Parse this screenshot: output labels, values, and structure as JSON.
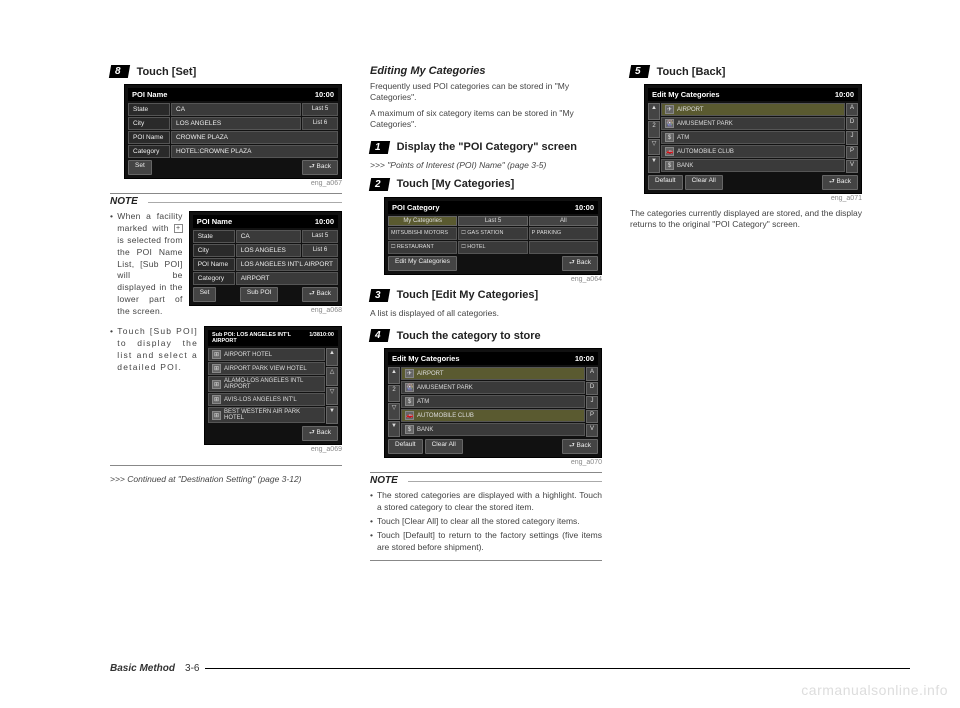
{
  "col1": {
    "step8": {
      "num": "8",
      "title": "Touch [Set]"
    },
    "ss1": {
      "title": "POI Name",
      "time": "10:00",
      "rows": [
        {
          "label": "State",
          "value": "CA",
          "side": "Last 5"
        },
        {
          "label": "City",
          "value": "LOS ANGELES",
          "side": "List 6"
        },
        {
          "label": "POI Name",
          "value": "CROWNE PLAZA",
          "side": ""
        },
        {
          "label": "Category",
          "value": "HOTEL:CROWNE PLAZA",
          "side": ""
        }
      ],
      "footer_left": "Set",
      "footer_right": "⮐ Back",
      "caption": "eng_a067"
    },
    "note_label": "NOTE",
    "note1": "When a facility marked with ⊞ is selected from the POI Name List, [Sub POI] will be displayed in the lower part of the screen.",
    "ss2": {
      "title": "POI Name",
      "time": "10:00",
      "rows": [
        {
          "label": "State",
          "value": "CA",
          "side": "Last 5"
        },
        {
          "label": "City",
          "value": "LOS ANGELES",
          "side": "List 6"
        },
        {
          "label": "POI Name",
          "value": "LOS ANGELES INT'L AIRPORT",
          "side": ""
        },
        {
          "label": "Category",
          "value": "AIRPORT",
          "side": ""
        }
      ],
      "footer_left": "Set",
      "footer_mid": "Sub POI",
      "footer_right": "⮐ Back",
      "caption": "eng_a068"
    },
    "note2": "Touch [Sub POI] to display the list and select a detailed POI.",
    "ss3": {
      "title": "Sub POI: LOS ANGELES INT'L AIRPORT",
      "count": "1/38",
      "time": "10:00",
      "items": [
        "AIRPORT HOTEL",
        "AIRPORT PARK VIEW HOTEL",
        "ALAMO-LOS ANGELES INTL AIRPORT",
        "AVIS-LOS ANGELES INT'L",
        "BEST WESTERN AIR PARK HOTEL"
      ],
      "footer_right": "⮐ Back",
      "caption": "eng_a069"
    },
    "continued": ">>> Continued at \"Destination Setting\" (page 3-12)"
  },
  "col2": {
    "heading": "Editing My Categories",
    "intro1": "Frequently used POI categories can be stored in \"My Categories\".",
    "intro2": "A maximum of six category items can be stored in \"My Categories\".",
    "step1": {
      "num": "1",
      "title": "Display the \"POI Category\" screen"
    },
    "ref1": ">>> \"Points of Interest (POI) Name\" (page 3-5)",
    "step2": {
      "num": "2",
      "title": "Touch [My Categories]"
    },
    "ss4": {
      "title": "POI Category",
      "time": "10:00",
      "tabs": [
        "My Categories",
        "Last 5",
        "All"
      ],
      "tiles": [
        [
          "MITSUBISHI MOTORS",
          "🞎 GAS STATION",
          "P PARKING"
        ],
        [
          "🞎 RESTAURANT",
          "🞎 HOTEL",
          ""
        ]
      ],
      "footer_left": "Edit My Categories",
      "footer_right": "⮐ Back",
      "caption": "eng_a064"
    },
    "step3": {
      "num": "3",
      "title": "Touch [Edit My Categories]"
    },
    "step3_body": "A list is displayed of all categories.",
    "step4": {
      "num": "4",
      "title": "Touch the category to store"
    },
    "ss5": {
      "title": "Edit My Categories",
      "time": "10:00",
      "items": [
        {
          "icon": "✈",
          "label": "AIRPORT",
          "hl": true
        },
        {
          "icon": "🎡",
          "label": "AMUSEMENT PARK",
          "hl": false
        },
        {
          "icon": "$",
          "label": "ATM",
          "hl": false
        },
        {
          "icon": "🚗",
          "label": "AUTOMOBILE CLUB",
          "hl": true
        },
        {
          "icon": "$",
          "label": "BANK",
          "hl": false
        }
      ],
      "footer_l1": "Default",
      "footer_l2": "Clear All",
      "footer_right": "⮐ Back",
      "caption": "eng_a070"
    },
    "note_label": "NOTE",
    "note_b1": "The stored categories are displayed with a highlight. Touch a stored category to clear the stored item.",
    "note_b2": "Touch [Clear All] to clear all the stored category items.",
    "note_b3": "Touch [Default] to return to the factory settings (five items are stored before shipment)."
  },
  "col3": {
    "step5": {
      "num": "5",
      "title": "Touch [Back]"
    },
    "ss6": {
      "title": "Edit My Categories",
      "time": "10:00",
      "items": [
        {
          "icon": "✈",
          "label": "AIRPORT",
          "hl": true
        },
        {
          "icon": "🎡",
          "label": "AMUSEMENT PARK",
          "hl": false
        },
        {
          "icon": "$",
          "label": "ATM",
          "hl": false
        },
        {
          "icon": "🚗",
          "label": "AUTOMOBILE CLUB",
          "hl": false
        },
        {
          "icon": "$",
          "label": "BANK",
          "hl": false
        }
      ],
      "footer_l1": "Default",
      "footer_l2": "Clear All",
      "footer_right": "⮐ Back",
      "caption": "eng_a071"
    },
    "outro": "The categories currently displayed are stored, and the display returns to the original \"POI Category\" screen."
  },
  "footer": {
    "title": "Basic Method",
    "page": "3-6"
  },
  "watermark": "carmanualsonline.info"
}
